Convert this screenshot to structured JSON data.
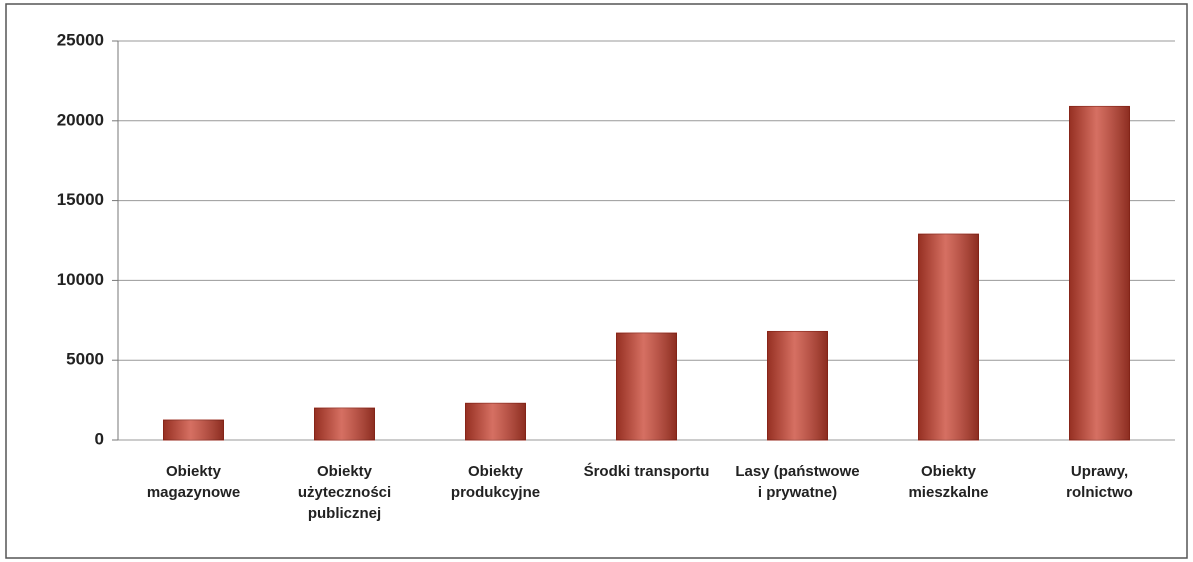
{
  "chart_data": {
    "type": "bar",
    "categories": [
      "Obiekty\nmagazynowe",
      "Obiekty\nużyteczności\npublicznej",
      "Obiekty\nprodukcyjne",
      "Środki transportu",
      "Lasy (państwowe\ni prywatne)",
      "Obiekty\nmieszkalne",
      "Uprawy,\nrolnictwo"
    ],
    "values": [
      1250,
      2000,
      2300,
      6700,
      6800,
      12900,
      20900
    ],
    "color": "#c8402e",
    "ylim": [
      0,
      25000
    ],
    "yticks": [
      0,
      5000,
      10000,
      15000,
      20000,
      25000
    ],
    "grid": true
  }
}
